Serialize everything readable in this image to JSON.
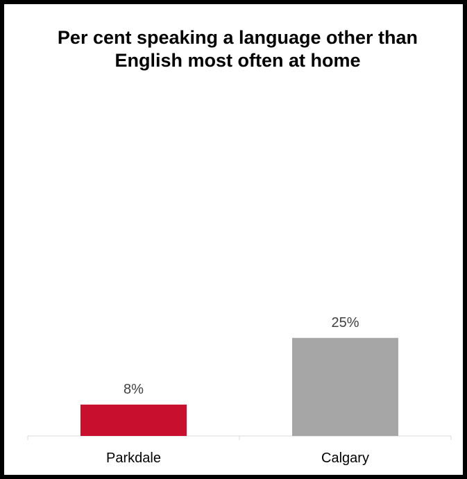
{
  "chart_data": {
    "type": "bar",
    "title": "Per cent speaking a language other than English most often at home",
    "categories": [
      "Parkdale",
      "Calgary"
    ],
    "values": [
      8,
      25
    ],
    "value_labels": [
      "8%",
      "25%"
    ],
    "colors": [
      "#C8102E",
      "#A6A6A6"
    ],
    "ylim": [
      0,
      80
    ],
    "xlabel": "",
    "ylabel": "",
    "grid": false,
    "legend": "none"
  }
}
